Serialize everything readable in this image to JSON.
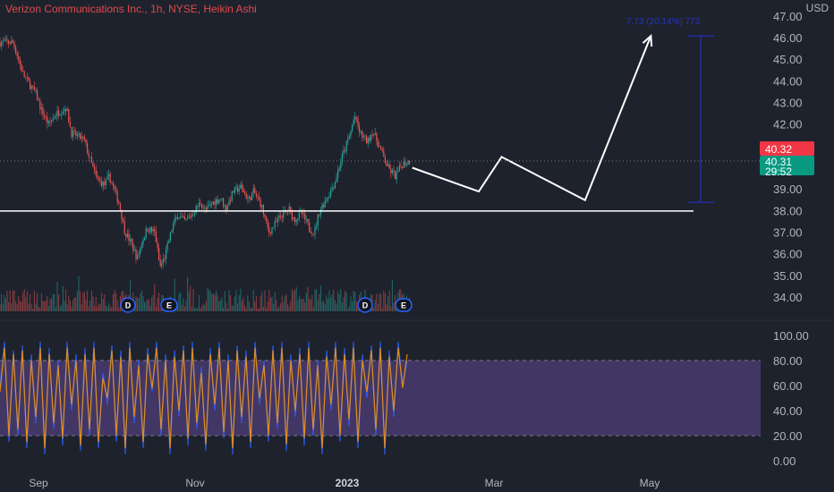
{
  "header": {
    "title": "Verizon Communications Inc., 1h, NYSE, Heikin Ashi",
    "currency": "USD"
  },
  "price_tags": {
    "last": "40.32",
    "current": "40.31",
    "countdown": "29:52"
  },
  "measure_label": "7.73 (20.14%) 773",
  "events": [
    "D",
    "E",
    "D",
    "E"
  ],
  "colors": {
    "background": "#1e222d",
    "up": "#26a69a",
    "down": "#ef5350",
    "oscillator_band": "#7e57c2",
    "k_line": "#2962ff",
    "d_line": "#ff9800",
    "drawing": "#ffffff",
    "measure": "#2233bb",
    "title": "#e04a4a"
  },
  "chart_data": [
    {
      "type": "candlestick",
      "title": "Verizon Communications Inc., 1h, NYSE, Heikin Ashi",
      "ylabel": "USD",
      "ylim": [
        33.5,
        47
      ],
      "y_ticks": [
        "47.00",
        "46.00",
        "45.00",
        "44.00",
        "43.00",
        "42.00",
        "41.00",
        "40.00",
        "39.00",
        "38.00",
        "37.00",
        "36.00",
        "35.00",
        "34.00"
      ],
      "x_ticks": [
        "Sep",
        "Nov",
        "2023",
        "Mar",
        "May"
      ],
      "grid": false,
      "price_path": [
        {
          "t": "Aug 22",
          "v": 45.8
        },
        {
          "t": "Aug 26",
          "v": 44.3
        },
        {
          "t": "Aug 31",
          "v": 43.4
        },
        {
          "t": "Sep 2",
          "v": 42.7
        },
        {
          "t": "Sep 5",
          "v": 42.0
        },
        {
          "t": "Sep 8",
          "v": 42.5
        },
        {
          "t": "Sep 12",
          "v": 42.8
        },
        {
          "t": "Sep 14",
          "v": 41.6
        },
        {
          "t": "Sep 19",
          "v": 41.3
        },
        {
          "t": "Sep 21",
          "v": 40.5
        },
        {
          "t": "Sep 24",
          "v": 39.5
        },
        {
          "t": "Sep 27",
          "v": 39.2
        },
        {
          "t": "Sep 29",
          "v": 39.6
        },
        {
          "t": "Oct 3",
          "v": 38.3
        },
        {
          "t": "Oct 5",
          "v": 37.1
        },
        {
          "t": "Oct 8",
          "v": 36.4
        },
        {
          "t": "Oct 10",
          "v": 35.8
        },
        {
          "t": "Oct 12",
          "v": 36.6
        },
        {
          "t": "Oct 14",
          "v": 37.2
        },
        {
          "t": "Oct 17",
          "v": 37.0
        },
        {
          "t": "Oct 19",
          "v": 35.4
        },
        {
          "t": "Oct 21",
          "v": 35.9
        },
        {
          "t": "Oct 24",
          "v": 37.3
        },
        {
          "t": "Oct 26",
          "v": 37.8
        },
        {
          "t": "Oct 29",
          "v": 37.5
        },
        {
          "t": "Nov 1",
          "v": 37.9
        },
        {
          "t": "Nov 4",
          "v": 38.4
        },
        {
          "t": "Nov 6",
          "v": 38.0
        },
        {
          "t": "Nov 9",
          "v": 38.4
        },
        {
          "t": "Nov 12",
          "v": 38.6
        },
        {
          "t": "Nov 14",
          "v": 38.1
        },
        {
          "t": "Nov 17",
          "v": 38.9
        },
        {
          "t": "Nov 20",
          "v": 39.1
        },
        {
          "t": "Nov 23",
          "v": 38.5
        },
        {
          "t": "Nov 25",
          "v": 38.9
        },
        {
          "t": "Nov 28",
          "v": 38.3
        },
        {
          "t": "Dec 1",
          "v": 37.0
        },
        {
          "t": "Dec 3",
          "v": 37.3
        },
        {
          "t": "Dec 6",
          "v": 37.8
        },
        {
          "t": "Dec 9",
          "v": 38.1
        },
        {
          "t": "Dec 11",
          "v": 37.6
        },
        {
          "t": "Dec 14",
          "v": 37.9
        },
        {
          "t": "Dec 17",
          "v": 37.2
        },
        {
          "t": "Dec 19",
          "v": 37.0
        },
        {
          "t": "Dec 21",
          "v": 38.0
        },
        {
          "t": "Dec 24",
          "v": 38.6
        },
        {
          "t": "Dec 27",
          "v": 39.3
        },
        {
          "t": "Dec 30",
          "v": 40.5
        },
        {
          "t": "Jan 2",
          "v": 41.5
        },
        {
          "t": "Jan 4",
          "v": 42.4
        },
        {
          "t": "Jan 6",
          "v": 41.6
        },
        {
          "t": "Jan 9",
          "v": 41.2
        },
        {
          "t": "Jan 11",
          "v": 41.7
        },
        {
          "t": "Jan 14",
          "v": 40.9
        },
        {
          "t": "Jan 17",
          "v": 40.0
        },
        {
          "t": "Jan 20",
          "v": 39.6
        },
        {
          "t": "Jan 23",
          "v": 40.2
        },
        {
          "t": "Jan 26",
          "v": 40.31
        }
      ],
      "drawn_projection": [
        {
          "t": "Jan 26",
          "v": 40.0
        },
        {
          "t": "Feb 22",
          "v": 38.9
        },
        {
          "t": "Mar 3",
          "v": 40.5
        },
        {
          "t": "Apr 5",
          "v": 38.5
        },
        {
          "t": "May 1",
          "v": 46.1
        }
      ],
      "horizontal_line": 38.0,
      "measure": {
        "from": 38.4,
        "to": 46.1
      }
    },
    {
      "type": "line",
      "title": "",
      "ylim": [
        0,
        100
      ],
      "y_ticks": [
        "100.00",
        "80.00",
        "60.00",
        "40.00",
        "20.00",
        "0.00"
      ],
      "band": [
        20,
        80
      ],
      "series": [
        {
          "values": [
            60,
            95,
            15,
            88,
            20,
            92,
            10,
            85,
            30,
            95,
            5,
            90,
            25,
            80,
            12,
            95,
            40,
            85,
            8,
            90,
            20,
            95,
            10,
            70,
            45,
            92,
            15,
            88,
            5,
            95,
            30,
            80,
            10,
            90,
            55,
            95,
            20,
            85,
            5,
            88,
            35,
            92,
            12,
            95,
            25,
            75,
            8,
            90,
            40,
            95,
            18,
            85,
            5,
            92,
            30,
            88,
            10,
            95,
            45,
            80,
            15,
            92,
            25,
            95,
            8,
            85,
            35,
            90,
            12,
            95,
            20,
            80,
            5,
            88,
            40,
            95,
            15,
            90,
            28,
            95,
            10,
            85,
            50,
            92,
            20,
            95,
            5,
            88,
            35,
            95,
            60,
            80
          ]
        },
        {
          "values": [
            55,
            90,
            20,
            85,
            25,
            88,
            15,
            80,
            35,
            90,
            10,
            85,
            30,
            76,
            18,
            90,
            45,
            80,
            12,
            85,
            25,
            90,
            15,
            66,
            50,
            88,
            20,
            83,
            10,
            90,
            35,
            76,
            15,
            85,
            58,
            90,
            25,
            80,
            10,
            83,
            40,
            88,
            18,
            90,
            30,
            70,
            13,
            85,
            45,
            90,
            23,
            80,
            10,
            88,
            35,
            83,
            15,
            90,
            50,
            76,
            20,
            88,
            30,
            90,
            13,
            80,
            40,
            85,
            18,
            90,
            25,
            76,
            10,
            83,
            45,
            90,
            20,
            85,
            33,
            90,
            15,
            80,
            55,
            88,
            25,
            90,
            10,
            83,
            40,
            90,
            58,
            85
          ]
        }
      ]
    }
  ]
}
